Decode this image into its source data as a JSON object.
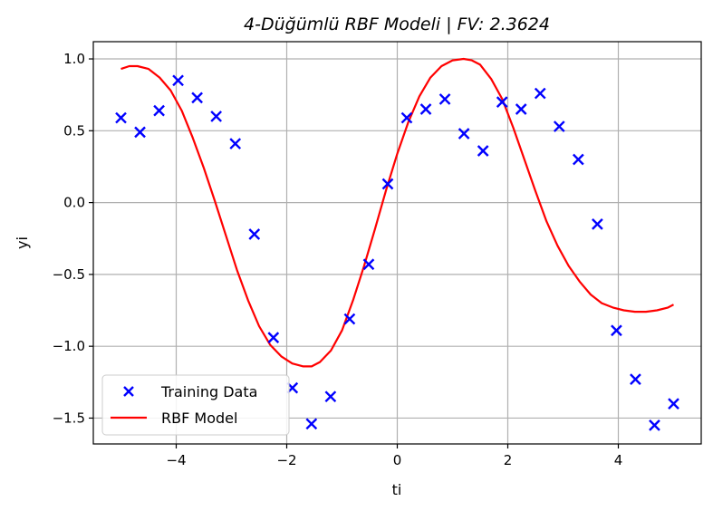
{
  "chart_data": {
    "type": "scatter+line",
    "title": "4-Düğümlü RBF Modeli | FV: 2.3624",
    "xlabel": "ti",
    "ylabel": "yi",
    "xlim": [
      -5.5,
      5.5
    ],
    "ylim": [
      -1.68,
      1.12
    ],
    "grid": true,
    "legend_position": "lower-left",
    "xticks": [
      -4,
      -2,
      0,
      2,
      4
    ],
    "xtick_labels": [
      "−4",
      "−2",
      "0",
      "2",
      "4"
    ],
    "yticks": [
      1.0,
      0.5,
      0.0,
      -0.5,
      -1.0,
      -1.5
    ],
    "ytick_labels": [
      "1.0",
      "0.5",
      "0.0",
      "−0.5",
      "−1.0",
      "−1.5"
    ],
    "series": [
      {
        "name": "Training Data",
        "kind": "scatter",
        "marker": "x",
        "color": "#0000ff",
        "x": [
          -5.0,
          -4.655,
          -4.31,
          -3.966,
          -3.621,
          -3.276,
          -2.931,
          -2.586,
          -2.241,
          -1.897,
          -1.552,
          -1.207,
          -0.862,
          -0.517,
          -0.172,
          0.172,
          0.517,
          0.862,
          1.207,
          1.552,
          1.897,
          2.241,
          2.586,
          2.931,
          3.276,
          3.621,
          3.966,
          4.31,
          4.655,
          5.0
        ],
        "y": [
          0.59,
          0.49,
          0.64,
          0.85,
          0.73,
          0.6,
          0.41,
          -0.22,
          -0.94,
          -1.29,
          -1.54,
          -1.35,
          -0.81,
          -0.43,
          0.13,
          0.59,
          0.65,
          0.72,
          0.48,
          0.36,
          0.7,
          0.65,
          0.76,
          0.53,
          0.3,
          -0.15,
          -0.89,
          -1.23,
          -1.55,
          -1.4
        ]
      },
      {
        "name": "RBF Model",
        "kind": "line",
        "color": "#ff0000",
        "x": [
          -5.0,
          -4.85,
          -4.7,
          -4.5,
          -4.3,
          -4.1,
          -3.9,
          -3.7,
          -3.5,
          -3.3,
          -3.1,
          -2.9,
          -2.7,
          -2.5,
          -2.3,
          -2.1,
          -1.9,
          -1.7,
          -1.55,
          -1.4,
          -1.2,
          -1.0,
          -0.8,
          -0.6,
          -0.4,
          -0.2,
          0.0,
          0.2,
          0.4,
          0.6,
          0.8,
          1.0,
          1.2,
          1.35,
          1.5,
          1.7,
          1.9,
          2.1,
          2.3,
          2.5,
          2.7,
          2.9,
          3.1,
          3.3,
          3.5,
          3.7,
          3.9,
          4.1,
          4.3,
          4.5,
          4.7,
          4.9,
          5.0
        ],
        "y": [
          0.93,
          0.95,
          0.95,
          0.93,
          0.87,
          0.78,
          0.64,
          0.45,
          0.24,
          0.01,
          -0.23,
          -0.47,
          -0.68,
          -0.86,
          -0.99,
          -1.07,
          -1.12,
          -1.14,
          -1.14,
          -1.11,
          -1.03,
          -0.89,
          -0.68,
          -0.44,
          -0.18,
          0.09,
          0.34,
          0.56,
          0.74,
          0.87,
          0.95,
          0.99,
          1.0,
          0.99,
          0.96,
          0.86,
          0.72,
          0.52,
          0.3,
          0.08,
          -0.13,
          -0.3,
          -0.44,
          -0.55,
          -0.64,
          -0.7,
          -0.73,
          -0.75,
          -0.76,
          -0.76,
          -0.75,
          -0.73,
          -0.71
        ]
      }
    ]
  }
}
